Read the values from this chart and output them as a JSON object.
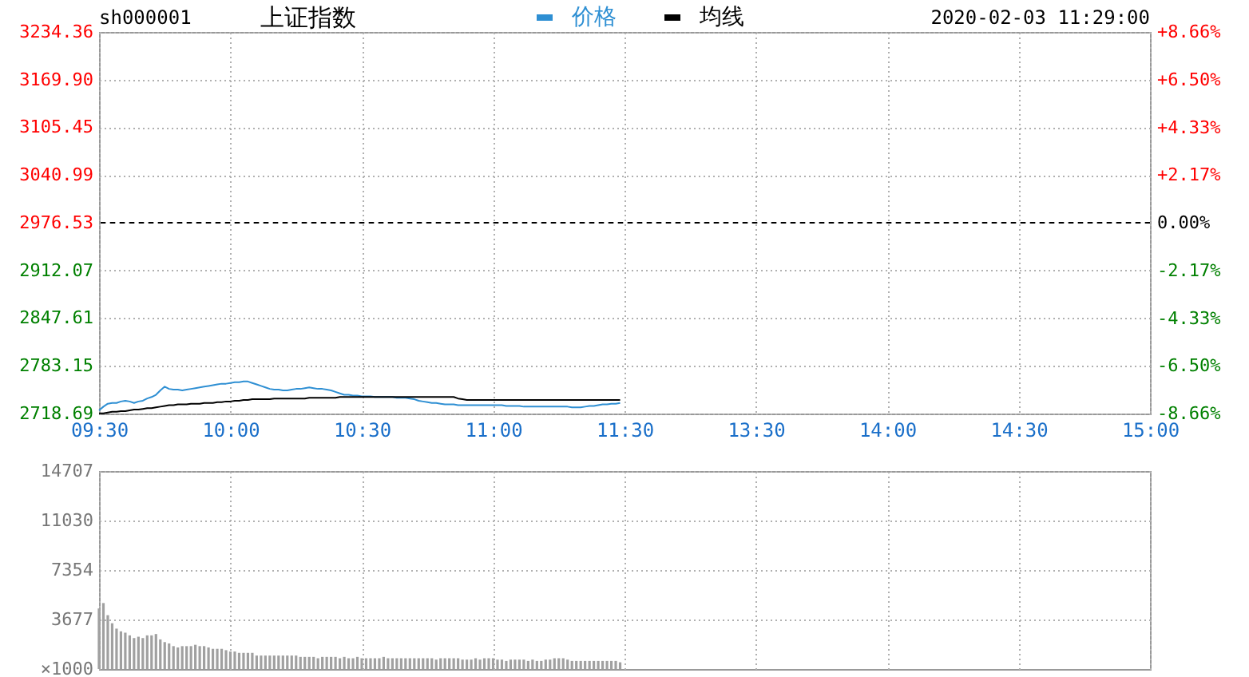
{
  "chart_data": [
    {
      "type": "line",
      "title": "上证指数",
      "annotations": [
        "sh000001",
        "2020-02-03 11:29:00"
      ],
      "categories": [
        "09:30",
        null,
        null,
        null,
        null,
        null,
        null,
        null,
        null,
        null,
        null,
        null,
        null,
        null,
        null,
        null,
        null,
        null,
        null,
        null,
        null,
        null,
        null,
        null,
        null,
        null,
        null,
        null,
        null,
        null,
        "10:00",
        null,
        null,
        null,
        null,
        null,
        null,
        null,
        null,
        null,
        null,
        null,
        null,
        null,
        null,
        null,
        null,
        null,
        null,
        null,
        null,
        null,
        null,
        null,
        null,
        null,
        null,
        null,
        null,
        null,
        "10:30",
        null,
        null,
        null,
        null,
        null,
        null,
        null,
        null,
        null,
        null,
        null,
        null,
        null,
        null,
        null,
        null,
        null,
        null,
        null,
        null,
        null,
        null,
        null,
        null,
        null,
        null,
        null,
        null,
        null,
        "11:00",
        null,
        null,
        null,
        null,
        null,
        null,
        null,
        null,
        null,
        null,
        null,
        null,
        null,
        null,
        null,
        null,
        null,
        null,
        null,
        null,
        null,
        null,
        null,
        null,
        null,
        null,
        null,
        null,
        null,
        "11:30",
        null,
        null,
        null,
        null,
        null,
        null,
        null,
        null,
        null,
        null,
        null,
        null,
        null,
        null,
        null,
        null,
        null,
        null,
        null,
        null,
        null,
        null,
        null,
        null,
        null,
        null,
        null,
        null,
        null,
        "13:30",
        null,
        null,
        null,
        null,
        null,
        null,
        null,
        null,
        null,
        null,
        null,
        null,
        null,
        null,
        null,
        null,
        null,
        null,
        null,
        null,
        null,
        null,
        null,
        null,
        null,
        null,
        null,
        null,
        null,
        "14:00",
        null,
        null,
        null,
        null,
        null,
        null,
        null,
        null,
        null,
        null,
        null,
        null,
        null,
        null,
        null,
        null,
        null,
        null,
        null,
        null,
        null,
        null,
        null,
        null,
        null,
        null,
        null,
        null,
        null,
        "14:30",
        null,
        null,
        null,
        null,
        null,
        null,
        null,
        null,
        null,
        null,
        null,
        null,
        null,
        null,
        null,
        null,
        null,
        null,
        null,
        null,
        null,
        null,
        null,
        null,
        null,
        null,
        null,
        null,
        null,
        "15:00"
      ],
      "ylim": [
        2718.69,
        3234.36
      ],
      "yticks": [
        2718.69,
        2783.15,
        2847.61,
        2912.07,
        2976.53,
        3040.99,
        3105.45,
        {
          "value": 3169.9,
          "label": "3169.90"
        },
        3234.36
      ],
      "y2lim": [
        -8.66,
        8.66
      ],
      "y2ticks": [
        {
          "value": -8.66,
          "label": "-8.66%"
        },
        {
          "value": -6.5,
          "label": "-6.50%"
        },
        {
          "value": -4.33,
          "label": "-4.33%"
        },
        {
          "value": -2.17,
          "label": "-2.17%"
        },
        {
          "value": 0,
          "label": "0.00%"
        },
        {
          "value": 2.17,
          "label": "+2.17%"
        },
        {
          "value": 4.33,
          "label": "+4.33%"
        },
        {
          "value": 6.5,
          "label": "+6.50%"
        },
        {
          "value": 8.66,
          "label": "+8.66%"
        }
      ],
      "series": [
        {
          "name": "价格",
          "color": "#2e8fd3",
          "values": [
            2723,
            2728,
            2732,
            2733,
            2733,
            2735,
            2736,
            2735,
            2733,
            2735,
            2736,
            2739,
            2741,
            2744,
            2750,
            2755,
            2752,
            2751,
            2751,
            2750,
            2751,
            2752,
            2753,
            2754,
            2755,
            2756,
            2757,
            2758,
            2759,
            2759,
            2760,
            2761,
            2761,
            2762,
            2762,
            2760,
            2758,
            2756,
            2754,
            2752,
            2751,
            2751,
            2750,
            2750,
            2751,
            2752,
            2752,
            2753,
            2754,
            2753,
            2752,
            2752,
            2751,
            2750,
            2748,
            2746,
            2744,
            2744,
            2743,
            2743,
            2742,
            2742,
            2742,
            2741,
            2741,
            2741,
            2741,
            2741,
            2740,
            2740,
            2740,
            2739,
            2738,
            2736,
            2735,
            2734,
            2733,
            2733,
            2732,
            2731,
            2731,
            2731,
            2730,
            2730,
            2730,
            2730,
            2730,
            2730,
            2730,
            2730,
            2730,
            2730,
            2730,
            2729,
            2729,
            2729,
            2729,
            2728,
            2728,
            2728,
            2728,
            2728,
            2728,
            2728,
            2728,
            2728,
            2728,
            2728,
            2727,
            2727,
            2727,
            2728,
            2729,
            2729,
            2730,
            2731,
            2731,
            2732,
            2732,
            2733,
            null,
            null,
            null,
            null,
            null,
            null,
            null,
            null,
            null,
            null,
            null,
            null,
            null,
            null,
            null,
            null,
            null,
            null,
            null,
            null,
            null,
            null,
            null,
            null,
            null,
            null,
            null,
            null,
            null,
            null,
            null,
            null,
            null,
            null,
            null,
            null,
            null,
            null,
            null,
            null,
            null,
            null,
            null,
            null,
            null,
            null,
            null,
            null,
            null,
            null,
            null,
            null,
            null,
            null,
            null,
            null,
            null,
            null,
            null,
            null,
            null,
            null,
            null,
            null,
            null,
            null,
            null,
            null,
            null,
            null,
            null,
            null,
            null,
            null,
            null,
            null,
            null,
            null,
            null,
            null,
            null,
            null,
            null,
            null,
            null,
            null,
            null,
            null,
            null,
            null,
            null,
            null,
            null,
            null,
            null,
            null,
            null,
            null,
            null,
            null,
            null,
            null,
            null,
            null,
            null,
            null,
            null,
            null,
            null,
            null,
            null,
            null,
            null,
            null,
            null,
            null,
            null,
            null,
            null,
            null,
            null
          ]
        },
        {
          "name": "均线",
          "color": "#000000",
          "values": [
            2719,
            2719,
            2720,
            2721,
            2721,
            2722,
            2722,
            2723,
            2724,
            2724,
            2725,
            2726,
            2726,
            2727,
            2728,
            2729,
            2730,
            2730,
            2731,
            2731,
            2731,
            2732,
            2732,
            2732,
            2733,
            2733,
            2733,
            2734,
            2734,
            2735,
            2735,
            2736,
            2736,
            2737,
            2737,
            2738,
            2738,
            2738,
            2738,
            2738,
            2739,
            2739,
            2739,
            2739,
            2739,
            2739,
            2739,
            2739,
            2740,
            2740,
            2740,
            2740,
            2740,
            2740,
            2740,
            2741,
            2741,
            2741,
            2741,
            2741,
            2741,
            2741,
            2741,
            2741,
            2741,
            2741,
            2741,
            2741,
            2741,
            2741,
            2741,
            2741,
            2741,
            2741,
            2741,
            2741,
            2741,
            2741,
            2741,
            2741,
            2741,
            2741,
            2739,
            2738,
            2737,
            2737,
            2737,
            2737,
            2737,
            2737,
            2737,
            2737,
            2737,
            2737,
            2737,
            2737,
            2737,
            2737,
            2737,
            2737,
            2737,
            2737,
            2737,
            2737,
            2737,
            2737,
            2737,
            2737,
            2737,
            2737,
            2737,
            2737,
            2737,
            2737,
            2737,
            2737,
            2737,
            2737,
            2737,
            2737,
            null,
            null,
            null,
            null,
            null,
            null,
            null,
            null,
            null,
            null,
            null,
            null,
            null,
            null,
            null,
            null,
            null,
            null,
            null,
            null,
            null,
            null,
            null,
            null,
            null,
            null,
            null,
            null,
            null,
            null,
            null,
            null,
            null,
            null,
            null,
            null,
            null,
            null,
            null,
            null,
            null,
            null,
            null,
            null,
            null,
            null,
            null,
            null,
            null,
            null,
            null,
            null,
            null,
            null,
            null,
            null,
            null,
            null,
            null,
            null,
            null,
            null,
            null,
            null,
            null,
            null,
            null,
            null,
            null,
            null,
            null,
            null,
            null,
            null,
            null,
            null,
            null,
            null,
            null,
            null,
            null,
            null,
            null,
            null,
            null,
            null,
            null,
            null,
            null,
            null,
            null,
            null,
            null,
            null,
            null,
            null,
            null,
            null,
            null,
            null,
            null,
            null,
            null,
            null,
            null,
            null,
            null,
            null,
            null,
            null,
            null,
            null,
            null,
            null,
            null,
            null,
            null,
            null,
            null,
            null,
            null
          ]
        }
      ],
      "ref_lines": [
        {
          "axis": "y2",
          "value": 0,
          "color": "#000000",
          "line_style": "dashed"
        }
      ],
      "grid": true,
      "legend": "top"
    },
    {
      "type": "bar",
      "color": "#a0a0a0",
      "ylabel": "×1000",
      "categories": [
        null,
        null,
        null,
        null,
        null,
        null,
        null,
        null,
        null,
        null,
        null,
        null,
        null,
        null,
        null,
        null,
        null,
        null,
        null,
        null,
        null,
        null,
        null,
        null,
        null,
        null,
        null,
        null,
        null,
        null,
        null,
        null,
        null,
        null,
        null,
        null,
        null,
        null,
        null,
        null,
        null,
        null,
        null,
        null,
        null,
        null,
        null,
        null,
        null,
        null,
        null,
        null,
        null,
        null,
        null,
        null,
        null,
        null,
        null,
        null,
        null,
        null,
        null,
        null,
        null,
        null,
        null,
        null,
        null,
        null,
        null,
        null,
        null,
        null,
        null,
        null,
        null,
        null,
        null,
        null,
        null,
        null,
        null,
        null,
        null,
        null,
        null,
        null,
        null,
        null,
        null,
        null,
        null,
        null,
        null,
        null,
        null,
        null,
        null,
        null,
        null,
        null,
        null,
        null,
        null,
        null,
        null,
        null,
        null,
        null,
        null,
        null,
        null,
        null,
        null,
        null,
        null,
        null,
        null,
        null,
        null,
        null,
        null,
        null,
        null,
        null,
        null,
        null,
        null,
        null,
        null,
        null,
        null,
        null,
        null,
        null,
        null,
        null,
        null,
        null,
        null,
        null,
        null,
        null,
        null,
        null,
        null,
        null,
        null,
        null,
        null,
        null,
        null,
        null,
        null,
        null,
        null,
        null,
        null,
        null,
        null,
        null,
        null,
        null,
        null,
        null,
        null,
        null,
        null,
        null,
        null,
        null,
        null,
        null,
        null,
        null,
        null,
        null,
        null,
        null,
        null,
        null,
        null,
        null,
        null,
        null,
        null,
        null,
        null,
        null,
        null,
        null,
        null,
        null,
        null,
        null,
        null,
        null,
        null,
        null,
        null,
        null,
        null,
        null,
        null,
        null,
        null,
        null,
        null,
        null,
        null,
        null,
        null,
        null,
        null,
        null,
        null,
        null,
        null,
        null,
        null,
        null,
        null,
        null,
        null,
        null,
        null,
        null,
        null,
        null,
        null,
        null,
        null,
        null,
        null,
        null,
        null,
        null,
        null,
        null,
        null
      ],
      "values": [
        4500,
        4900,
        4000,
        3400,
        3000,
        2800,
        2700,
        2500,
        2300,
        2400,
        2300,
        2500,
        2500,
        2600,
        2200,
        2000,
        1900,
        1700,
        1600,
        1700,
        1700,
        1700,
        1800,
        1700,
        1700,
        1600,
        1500,
        1500,
        1500,
        1400,
        1300,
        1300,
        1200,
        1200,
        1200,
        1200,
        1000,
        1000,
        1000,
        1000,
        1000,
        1000,
        1000,
        1000,
        1000,
        1000,
        900,
        900,
        900,
        900,
        800,
        900,
        900,
        900,
        900,
        800,
        900,
        800,
        800,
        900,
        800,
        800,
        800,
        800,
        800,
        900,
        800,
        800,
        800,
        800,
        800,
        800,
        800,
        800,
        800,
        800,
        800,
        700,
        800,
        800,
        800,
        800,
        800,
        700,
        700,
        700,
        800,
        700,
        800,
        800,
        800,
        700,
        700,
        600,
        700,
        700,
        700,
        700,
        600,
        700,
        600,
        600,
        700,
        700,
        800,
        800,
        800,
        700,
        600,
        600,
        600,
        600,
        600,
        600,
        600,
        600,
        600,
        600,
        600,
        500,
        null,
        null,
        null,
        null,
        null,
        null,
        null,
        null,
        null,
        null,
        null,
        null,
        null,
        null,
        null,
        null,
        null,
        null,
        null,
        null,
        null,
        null,
        null,
        null,
        null,
        null,
        null,
        null,
        null,
        null,
        null,
        null,
        null,
        null,
        null,
        null,
        null,
        null,
        null,
        null,
        null,
        null,
        null,
        null,
        null,
        null,
        null,
        null,
        null,
        null,
        null,
        null,
        null,
        null,
        null,
        null,
        null,
        null,
        null,
        null,
        null,
        null,
        null,
        null,
        null,
        null,
        null,
        null,
        null,
        null,
        null,
        null,
        null,
        null,
        null,
        null,
        null,
        null,
        null,
        null,
        null,
        null,
        null,
        null,
        null,
        null,
        null,
        null,
        null,
        null,
        null,
        null,
        null,
        null,
        null,
        null,
        null,
        null,
        null,
        null,
        null,
        null,
        null,
        null,
        null,
        null,
        null,
        null,
        null,
        null,
        null,
        null,
        null,
        null,
        null,
        null,
        null,
        null,
        null,
        null,
        null
      ],
      "ylim": [
        0,
        14707
      ],
      "yticks": [
        3677,
        7354,
        11030,
        14707
      ],
      "grid": true
    }
  ]
}
